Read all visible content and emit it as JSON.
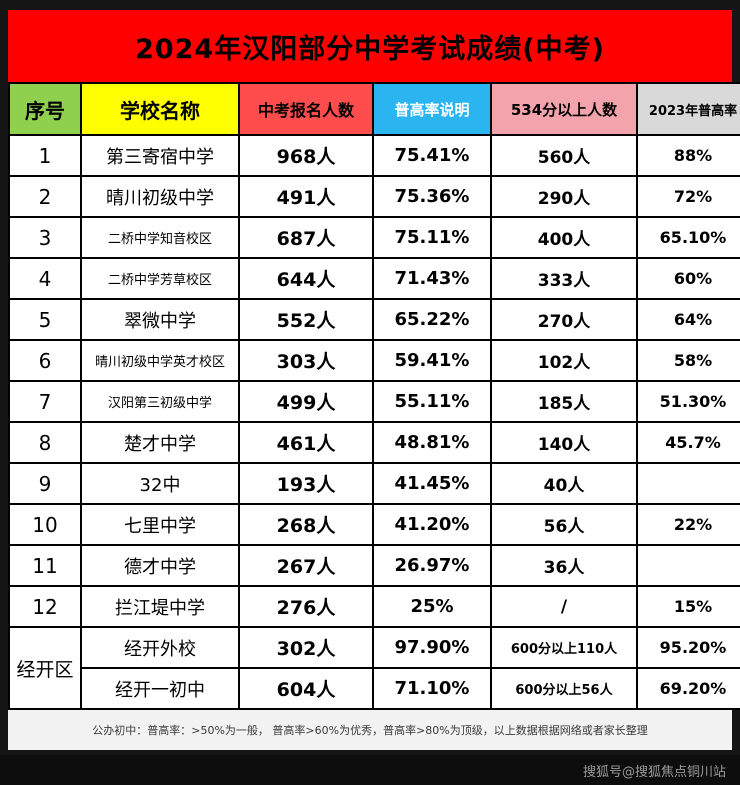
{
  "title": "2024年汉阳部分中学考试成绩(中考)",
  "colors": {
    "banner_bg": "#ff0000",
    "header_no_bg": "#8fd04e",
    "header_school_bg": "#ffff00",
    "header_applicants_bg": "#ff4d4d",
    "header_rate_bg": "#2bb5f0",
    "header_534_bg": "#f2a3ab",
    "header_2023_bg": "#d9d9d9",
    "page_bg": "#151515",
    "table_bg": "#ffffff"
  },
  "table": {
    "headers": [
      "序号",
      "学校名称",
      "中考报名人数",
      "普高率说明",
      "534分以上人数",
      "2023年普高率"
    ],
    "rows": [
      {
        "no": "1",
        "school": "第三寄宿中学",
        "applicants": "968人",
        "rate": "75.41%",
        "above534": "560人",
        "rate2023": "88%"
      },
      {
        "no": "2",
        "school": "晴川初级中学",
        "applicants": "491人",
        "rate": "75.36%",
        "above534": "290人",
        "rate2023": "72%"
      },
      {
        "no": "3",
        "school": "二桥中学知音校区",
        "applicants": "687人",
        "rate": "75.11%",
        "above534": "400人",
        "rate2023": "65.10%"
      },
      {
        "no": "4",
        "school": "二桥中学芳草校区",
        "applicants": "644人",
        "rate": "71.43%",
        "above534": "333人",
        "rate2023": "60%"
      },
      {
        "no": "5",
        "school": "翠微中学",
        "applicants": "552人",
        "rate": "65.22%",
        "above534": "270人",
        "rate2023": "64%"
      },
      {
        "no": "6",
        "school": "晴川初级中学英才校区",
        "applicants": "303人",
        "rate": "59.41%",
        "above534": "102人",
        "rate2023": "58%"
      },
      {
        "no": "7",
        "school": "汉阳第三初级中学",
        "applicants": "499人",
        "rate": "55.11%",
        "above534": "185人",
        "rate2023": "51.30%"
      },
      {
        "no": "8",
        "school": "楚才中学",
        "applicants": "461人",
        "rate": "48.81%",
        "above534": "140人",
        "rate2023": "45.7%"
      },
      {
        "no": "9",
        "school": "32中",
        "applicants": "193人",
        "rate": "41.45%",
        "above534": "40人",
        "rate2023": ""
      },
      {
        "no": "10",
        "school": "七里中学",
        "applicants": "268人",
        "rate": "41.20%",
        "above534": "56人",
        "rate2023": "22%"
      },
      {
        "no": "11",
        "school": "德才中学",
        "applicants": "267人",
        "rate": "26.97%",
        "above534": "36人",
        "rate2023": ""
      },
      {
        "no": "12",
        "school": "拦江堤中学",
        "applicants": "276人",
        "rate": "25%",
        "above534": "/",
        "rate2023": "15%"
      }
    ],
    "group_label": "经开区",
    "group_rows": [
      {
        "school": "经开外校",
        "applicants": "302人",
        "rate": "97.90%",
        "above534": "600分以上110人",
        "rate2023": "95.20%"
      },
      {
        "school": "经开一初中",
        "applicants": "604人",
        "rate": "71.10%",
        "above534": "600分以上56人",
        "rate2023": "69.20%"
      }
    ]
  },
  "footer": {
    "note": "公办初中：普高率：>50%为一般， 普高率>60%为优秀，普高率>80%为顶级，以上数据根据网络或者家长整理",
    "watermark": "搜狐号@搜狐焦点铜川站"
  }
}
